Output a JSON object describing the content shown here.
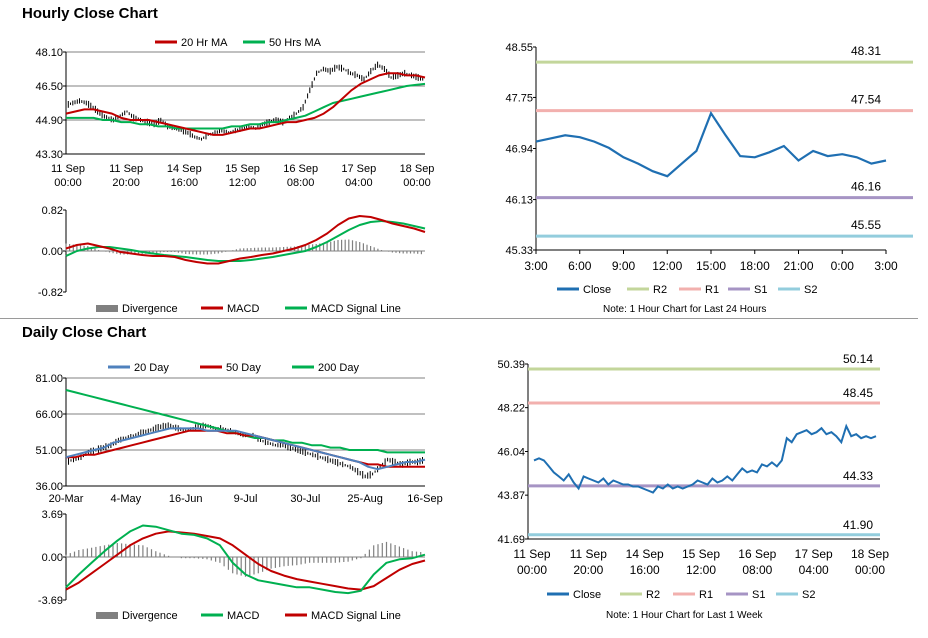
{
  "sections": {
    "hourly_title": "Hourly Close Chart",
    "daily_title": "Daily Close Chart"
  },
  "colors": {
    "ma_fast": "#c00000",
    "ma_slow": "#00b050",
    "price": "#000000",
    "divergence": "#808080",
    "close": "#1f6fb2",
    "r2": "#c3d69b",
    "r1": "#f2b0ae",
    "s1": "#a694c4",
    "s2": "#93cddd",
    "ma20": "#4f81bd"
  },
  "chart_data": [
    {
      "id": "hourly_price",
      "type": "line",
      "legend": [
        "20 Hr MA",
        "50 Hrs MA"
      ],
      "ylim": [
        43.3,
        48.1
      ],
      "yticks": [
        "48.10",
        "46.50",
        "44.90",
        "43.30"
      ],
      "xticks": [
        [
          "11 Sep",
          "00:00"
        ],
        [
          "11 Sep",
          "20:00"
        ],
        [
          "14 Sep",
          "16:00"
        ],
        [
          "15 Sep",
          "12:00"
        ],
        [
          "16 Sep",
          "08:00"
        ],
        [
          "17 Sep",
          "04:00"
        ],
        [
          "18 Sep",
          "00:00"
        ]
      ],
      "price": [
        45.6,
        45.7,
        45.8,
        45.7,
        45.5,
        45.2,
        45.0,
        44.9,
        45.1,
        45.3,
        45.0,
        44.9,
        44.8,
        44.7,
        44.9,
        44.6,
        44.5,
        44.4,
        44.3,
        44.1,
        44.0,
        44.2,
        44.3,
        44.4,
        44.3,
        44.4,
        44.5,
        44.6,
        44.5,
        44.7,
        44.8,
        44.9,
        44.8,
        45.0,
        45.2,
        45.5,
        46.3,
        47.1,
        47.3,
        47.2,
        47.4,
        47.3,
        47.1,
        47.0,
        46.8,
        47.2,
        47.5,
        47.3,
        46.9,
        47.0,
        47.1,
        47.0,
        46.9,
        46.8
      ],
      "series": [
        {
          "name": "20 Hr MA",
          "values": [
            45.2,
            45.3,
            45.4,
            45.4,
            45.3,
            45.2,
            45.0,
            44.9,
            44.9,
            44.9,
            44.8,
            44.7,
            44.6,
            44.5,
            44.4,
            44.3,
            44.2,
            44.2,
            44.3,
            44.4,
            44.5,
            44.5,
            44.6,
            44.7,
            44.8,
            44.8,
            44.9,
            45.0,
            45.2,
            45.5,
            45.9,
            46.3,
            46.6,
            46.8,
            47.0,
            47.1,
            47.1,
            47.0,
            47.0,
            46.9
          ]
        },
        {
          "name": "50 Hrs MA",
          "values": [
            45.0,
            45.0,
            45.0,
            45.0,
            44.9,
            44.9,
            44.8,
            44.8,
            44.7,
            44.7,
            44.6,
            44.6,
            44.5,
            44.5,
            44.5,
            44.5,
            44.5,
            44.5,
            44.6,
            44.6,
            44.7,
            44.7,
            44.8,
            44.8,
            44.9,
            45.0,
            45.1,
            45.3,
            45.5,
            45.7,
            45.8,
            45.9,
            46.0,
            46.1,
            46.2,
            46.3,
            46.4,
            46.5,
            46.55,
            46.6
          ]
        }
      ]
    },
    {
      "id": "hourly_macd",
      "type": "line",
      "legend": [
        "Divergence",
        "MACD",
        "MACD Signal Line"
      ],
      "ylim": [
        -0.82,
        0.82
      ],
      "yticks": [
        "0.82",
        "0.00",
        "-0.82"
      ],
      "series": [
        {
          "name": "MACD",
          "values": [
            0.05,
            0.12,
            0.15,
            0.1,
            0.05,
            -0.02,
            -0.05,
            -0.08,
            -0.1,
            -0.1,
            -0.12,
            -0.18,
            -0.22,
            -0.25,
            -0.25,
            -0.2,
            -0.15,
            -0.12,
            -0.08,
            -0.05,
            0.0,
            0.05,
            0.12,
            0.22,
            0.35,
            0.52,
            0.65,
            0.7,
            0.68,
            0.62,
            0.55,
            0.5,
            0.45,
            0.38
          ]
        },
        {
          "name": "MACD Signal Line",
          "values": [
            -0.1,
            0.0,
            0.05,
            0.08,
            0.08,
            0.05,
            0.02,
            -0.02,
            -0.05,
            -0.08,
            -0.1,
            -0.12,
            -0.15,
            -0.18,
            -0.2,
            -0.2,
            -0.2,
            -0.18,
            -0.15,
            -0.12,
            -0.08,
            -0.04,
            0.0,
            0.08,
            0.18,
            0.3,
            0.42,
            0.52,
            0.58,
            0.6,
            0.58,
            0.55,
            0.5,
            0.45
          ]
        },
        {
          "name": "Divergence",
          "values": [
            0.15,
            0.12,
            0.1,
            0.02,
            -0.03,
            -0.07,
            -0.07,
            -0.06,
            -0.05,
            -0.02,
            -0.02,
            -0.06,
            -0.07,
            -0.07,
            -0.05,
            0.0,
            0.05,
            0.06,
            0.07,
            0.07,
            0.08,
            0.09,
            0.12,
            0.14,
            0.17,
            0.22,
            0.23,
            0.18,
            0.1,
            0.02,
            -0.03,
            -0.05,
            -0.05,
            -0.07
          ]
        }
      ]
    },
    {
      "id": "hourly_levels",
      "type": "line",
      "ylim": [
        45.33,
        48.55
      ],
      "yticks": [
        "48.55",
        "47.75",
        "46.94",
        "46.13",
        "45.33"
      ],
      "xticks": [
        "3:00",
        "6:00",
        "9:00",
        "12:00",
        "15:00",
        "18:00",
        "21:00",
        "0:00",
        "3:00"
      ],
      "levels": [
        {
          "name": "R2",
          "value": "48.31"
        },
        {
          "name": "R1",
          "value": "47.54"
        },
        {
          "name": "S1",
          "value": "46.16"
        },
        {
          "name": "S2",
          "value": "45.55"
        }
      ],
      "legend": [
        "Close",
        "R2",
        "R1",
        "S1",
        "S2"
      ],
      "note": "Note: 1 Hour Chart for Last 24 Hours",
      "series": [
        {
          "name": "Close",
          "x": [
            0,
            1,
            2,
            3,
            4,
            5,
            6,
            7,
            8,
            9,
            10,
            11,
            12,
            13,
            14,
            15,
            16,
            17,
            18,
            19,
            20,
            21,
            22,
            23,
            24
          ],
          "values": [
            47.05,
            47.1,
            47.15,
            47.12,
            47.05,
            46.95,
            46.8,
            46.7,
            46.58,
            46.5,
            46.7,
            46.9,
            47.5,
            47.15,
            46.82,
            46.8,
            46.88,
            46.98,
            46.75,
            46.9,
            46.82,
            46.85,
            46.8,
            46.7,
            46.75
          ]
        }
      ]
    },
    {
      "id": "daily_price",
      "type": "line",
      "legend": [
        "20 Day",
        "50 Day",
        "200 Day"
      ],
      "ylim": [
        36.0,
        81.0
      ],
      "yticks": [
        "81.00",
        "66.00",
        "51.00",
        "36.00"
      ],
      "xticks": [
        "20-Mar",
        "4-May",
        "16-Jun",
        "9-Jul",
        "30-Jul",
        "25-Aug",
        "16-Sep"
      ],
      "price": [
        46,
        47,
        48,
        50,
        51,
        52,
        53,
        55,
        56,
        57,
        58,
        59,
        60,
        61,
        61,
        60,
        59,
        60,
        61,
        61,
        60,
        60,
        59,
        58,
        57,
        57,
        55,
        54,
        53,
        53,
        52,
        51,
        50,
        49,
        48,
        47,
        46,
        45,
        44,
        42,
        40,
        41,
        44,
        47,
        46,
        45,
        46,
        46,
        47
      ],
      "series": [
        {
          "name": "20 Day",
          "values": [
            48,
            49,
            50,
            51,
            52,
            54,
            55,
            56,
            57,
            58,
            59,
            60,
            60,
            60,
            60,
            59,
            59,
            59,
            59,
            58,
            57,
            56,
            55,
            54,
            53,
            52,
            51,
            50,
            49,
            48,
            47,
            46,
            44,
            43,
            44,
            45,
            46,
            46,
            47
          ]
        },
        {
          "name": "50 Day",
          "values": [
            48,
            48,
            49,
            49,
            50,
            51,
            52,
            53,
            54,
            55,
            56,
            57,
            58,
            59,
            59,
            59,
            59,
            58,
            58,
            57,
            57,
            56,
            55,
            54,
            53,
            52,
            51,
            50,
            49,
            48,
            47,
            46,
            45,
            45,
            44,
            44,
            44,
            44,
            44
          ]
        },
        {
          "name": "200 Day",
          "values": [
            76,
            75,
            74,
            73,
            72,
            71,
            70,
            69,
            68,
            67,
            66,
            65,
            64,
            63,
            62,
            61,
            60,
            59,
            58,
            57,
            56,
            56,
            55,
            55,
            54,
            54,
            53,
            53,
            52,
            52,
            51,
            51,
            51,
            51,
            50,
            50,
            50,
            50,
            50
          ]
        }
      ]
    },
    {
      "id": "daily_macd",
      "type": "line",
      "legend": [
        "Divergence",
        "MACD",
        "MACD Signal Line"
      ],
      "ylim": [
        -3.69,
        3.69
      ],
      "yticks": [
        "3.69",
        "0.00",
        "-3.69"
      ],
      "series": [
        {
          "name": "MACD",
          "values": [
            -2.6,
            -1.5,
            -0.5,
            0.5,
            1.4,
            2.2,
            2.7,
            2.6,
            2.3,
            2.0,
            1.9,
            1.6,
            1.0,
            -0.5,
            -1.5,
            -2.0,
            -2.2,
            -2.4,
            -2.6,
            -2.6,
            -2.8,
            -3.0,
            -3.1,
            -2.9,
            -1.5,
            -0.5,
            -0.2,
            -0.1,
            0.2
          ]
        },
        {
          "name": "MACD Signal Line",
          "values": [
            -2.8,
            -2.2,
            -1.4,
            -0.6,
            0.2,
            1.0,
            1.6,
            2.0,
            2.2,
            2.1,
            2.0,
            1.8,
            1.6,
            1.0,
            0.2,
            -0.6,
            -1.2,
            -1.6,
            -1.9,
            -2.1,
            -2.3,
            -2.5,
            -2.7,
            -2.8,
            -2.5,
            -1.8,
            -1.1,
            -0.6,
            -0.3
          ]
        },
        {
          "name": "Divergence",
          "values": [
            0.2,
            0.6,
            0.8,
            1.0,
            1.2,
            1.1,
            1.0,
            0.5,
            0.1,
            -0.1,
            -0.1,
            -0.2,
            -0.5,
            -1.4,
            -1.7,
            -1.4,
            -1.0,
            -0.8,
            -0.7,
            -0.5,
            -0.5,
            -0.5,
            -0.4,
            -0.1,
            1.0,
            1.3,
            0.9,
            0.5,
            0.4
          ]
        }
      ]
    },
    {
      "id": "daily_levels",
      "type": "line",
      "ylim": [
        41.69,
        50.39
      ],
      "yticks": [
        "50.39",
        "48.22",
        "46.04",
        "43.87",
        "41.69"
      ],
      "xticks": [
        [
          "11 Sep",
          "00:00"
        ],
        [
          "11 Sep",
          "20:00"
        ],
        [
          "14 Sep",
          "16:00"
        ],
        [
          "15 Sep",
          "12:00"
        ],
        [
          "16 Sep",
          "08:00"
        ],
        [
          "17 Sep",
          "04:00"
        ],
        [
          "18 Sep",
          "00:00"
        ]
      ],
      "levels": [
        {
          "name": "R2",
          "value": "50.14"
        },
        {
          "name": "R1",
          "value": "48.45"
        },
        {
          "name": "S1",
          "value": "44.33"
        },
        {
          "name": "S2",
          "value": "41.90"
        }
      ],
      "legend": [
        "Close",
        "R2",
        "R1",
        "S1",
        "S2"
      ],
      "note": "Note: 1 Hour Chart for Last 1 Week",
      "series": [
        {
          "name": "Close",
          "x": [
            0,
            1,
            2,
            3,
            4,
            5,
            6,
            7,
            8,
            9,
            10,
            11,
            12,
            13,
            14,
            15,
            16,
            17,
            18,
            19,
            20,
            21,
            22,
            23,
            24,
            25,
            26,
            27,
            28,
            29,
            30,
            31,
            32,
            33,
            34,
            35,
            36,
            37,
            38,
            39,
            40,
            41,
            42,
            43,
            44,
            45,
            46,
            47,
            48,
            49,
            50,
            51,
            52,
            53,
            54,
            55,
            56,
            57,
            58,
            59,
            60,
            61,
            62,
            63,
            64,
            65,
            66,
            67,
            68,
            69
          ],
          "values": [
            45.6,
            45.7,
            45.6,
            45.3,
            45.0,
            44.8,
            44.6,
            44.9,
            44.5,
            44.2,
            44.8,
            44.7,
            44.6,
            44.5,
            44.7,
            44.4,
            44.6,
            44.5,
            44.4,
            44.4,
            44.3,
            44.3,
            44.2,
            44.1,
            44.0,
            44.3,
            44.2,
            44.4,
            44.2,
            44.3,
            44.2,
            44.3,
            44.4,
            44.6,
            44.5,
            44.4,
            44.7,
            44.5,
            44.6,
            44.8,
            44.6,
            44.9,
            45.2,
            45.0,
            45.1,
            45.0,
            45.4,
            45.3,
            45.5,
            45.3,
            45.6,
            46.7,
            46.5,
            46.9,
            47.0,
            47.1,
            46.9,
            47.0,
            47.2,
            46.9,
            47.0,
            46.8,
            46.5,
            47.3,
            46.8,
            46.9,
            46.7,
            46.8,
            46.7,
            46.8
          ]
        }
      ]
    }
  ]
}
